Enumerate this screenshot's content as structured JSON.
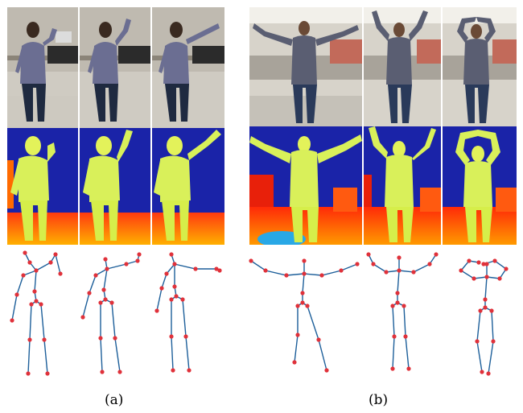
{
  "figure": {
    "captions": {
      "a": "(a)",
      "b": "(b)"
    },
    "colors": {
      "bone": "#1d5f9a",
      "joint": "#e0313a",
      "depth_background": "#1a23a8",
      "depth_floor_far": "#ff4a17",
      "depth_floor_near": "#ffb000",
      "body_color": "#d9f05a"
    }
  }
}
